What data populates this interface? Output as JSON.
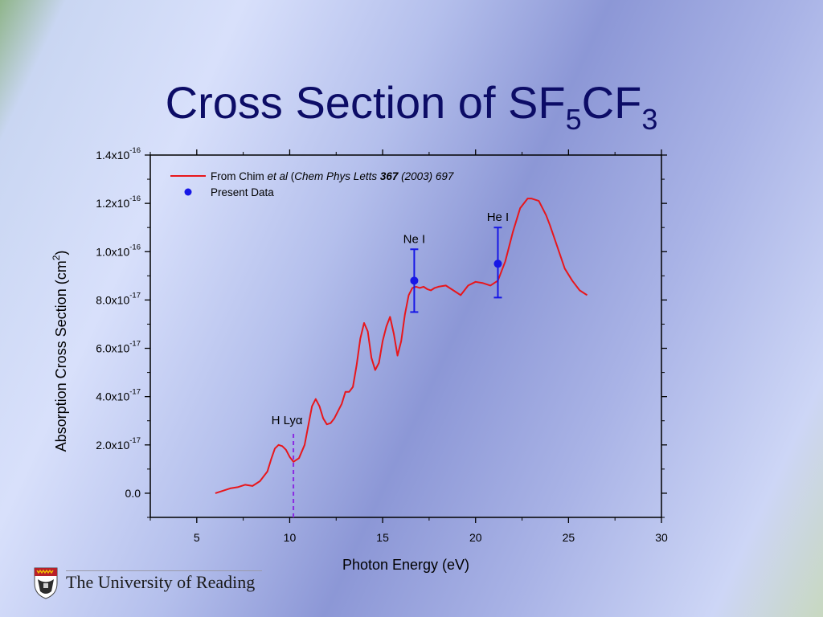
{
  "slide": {
    "title_main": "Cross Section of SF",
    "title_sub1": "5",
    "title_mid": "CF",
    "title_sub2": "3",
    "footer_text": "The University of Reading"
  },
  "chart_data": {
    "type": "line",
    "title": "",
    "xlabel": "Photon Energy (eV)",
    "ylabel_main": "Absorption Cross Section (cm",
    "ylabel_sup": "2",
    "ylabel_end": ")",
    "xlim": [
      2.5,
      30
    ],
    "ylim": [
      -1e-17,
      1.4e-16
    ],
    "x_ticks": [
      5,
      10,
      15,
      20,
      25,
      30
    ],
    "y_ticks": [
      {
        "value": 0,
        "mantissa": "0.0",
        "exp": ""
      },
      {
        "value": 2e-17,
        "mantissa": "2.0x10",
        "exp": "-17"
      },
      {
        "value": 4e-17,
        "mantissa": "4.0x10",
        "exp": "-17"
      },
      {
        "value": 6e-17,
        "mantissa": "6.0x10",
        "exp": "-17"
      },
      {
        "value": 8e-17,
        "mantissa": "8.0x10",
        "exp": "-17"
      },
      {
        "value": 1e-16,
        "mantissa": "1.0x10",
        "exp": "-16"
      },
      {
        "value": 1.2e-16,
        "mantissa": "1.2x10",
        "exp": "-16"
      },
      {
        "value": 1.4e-16,
        "mantissa": "1.4x10",
        "exp": "-16"
      }
    ],
    "grid": false,
    "legend_position": "top-left",
    "legend": {
      "line_entry": {
        "pre": "From Chim ",
        "ital1": "et al",
        "mid": " (",
        "ital2": "Chem Phys Letts ",
        "bold": "367",
        "ital3": " (2003) 697"
      },
      "point_entry": "Present Data"
    },
    "series": [
      {
        "name": "From Chim et al (Chem Phys Letts 367 (2003) 697",
        "color": "#e8161b",
        "style": "line",
        "x": [
          6.0,
          6.4,
          6.8,
          7.2,
          7.6,
          8.0,
          8.4,
          8.8,
          9.0,
          9.2,
          9.4,
          9.6,
          9.8,
          10.0,
          10.2,
          10.5,
          10.8,
          11.0,
          11.2,
          11.4,
          11.6,
          11.8,
          12.0,
          12.2,
          12.4,
          12.6,
          12.8,
          13.0,
          13.2,
          13.4,
          13.6,
          13.8,
          14.0,
          14.2,
          14.4,
          14.6,
          14.8,
          15.0,
          15.2,
          15.4,
          15.6,
          15.8,
          16.0,
          16.2,
          16.4,
          16.6,
          16.8,
          17.0,
          17.2,
          17.4,
          17.6,
          17.8,
          18.0,
          18.4,
          18.8,
          19.2,
          19.6,
          20.0,
          20.4,
          20.8,
          21.2,
          21.6,
          22.0,
          22.4,
          22.8,
          23.0,
          23.2,
          23.4,
          23.6,
          23.8,
          24.0,
          24.4,
          24.8,
          25.2,
          25.6,
          26.0
        ],
        "y": [
          0.0,
          1e-18,
          2e-18,
          2.5e-18,
          3.5e-18,
          3e-18,
          5e-18,
          9e-18,
          1.4e-17,
          1.85e-17,
          2e-17,
          1.95e-17,
          1.8e-17,
          1.5e-17,
          1.3e-17,
          1.45e-17,
          2e-17,
          2.8e-17,
          3.6e-17,
          3.9e-17,
          3.6e-17,
          3.1e-17,
          2.85e-17,
          2.9e-17,
          3.1e-17,
          3.4e-17,
          3.7e-17,
          4.2e-17,
          4.2e-17,
          4.4e-17,
          5.3e-17,
          6.4e-17,
          7.05e-17,
          6.7e-17,
          5.6e-17,
          5.1e-17,
          5.4e-17,
          6.3e-17,
          6.9e-17,
          7.3e-17,
          6.6e-17,
          5.7e-17,
          6.3e-17,
          7.4e-17,
          8.2e-17,
          8.5e-17,
          8.55e-17,
          8.5e-17,
          8.55e-17,
          8.45e-17,
          8.4e-17,
          8.5e-17,
          8.55e-17,
          8.6e-17,
          8.4e-17,
          8.2e-17,
          8.6e-17,
          8.75e-17,
          8.7e-17,
          8.6e-17,
          8.8e-17,
          9.6e-17,
          1.08e-16,
          1.18e-16,
          1.22e-16,
          1.22e-16,
          1.215e-16,
          1.21e-16,
          1.18e-16,
          1.15e-16,
          1.11e-16,
          1.02e-16,
          9.3e-17,
          8.8e-17,
          8.4e-17,
          8.2e-17
        ]
      },
      {
        "name": "Present Data",
        "color": "#1717e6",
        "style": "points",
        "points": [
          {
            "x": 16.7,
            "y": 8.8e-17,
            "err_low": 7.5e-17,
            "err_high": 1.01e-16,
            "label": "Ne I"
          },
          {
            "x": 21.2,
            "y": 9.5e-17,
            "err_low": 8.1e-17,
            "err_high": 1.1e-16,
            "label": "He I"
          }
        ]
      }
    ],
    "annotations": [
      {
        "x": 10.2,
        "text_main": "H Ly",
        "text_greek": "α",
        "style": "dashed-vertical",
        "color": "#8a2be2"
      }
    ]
  }
}
